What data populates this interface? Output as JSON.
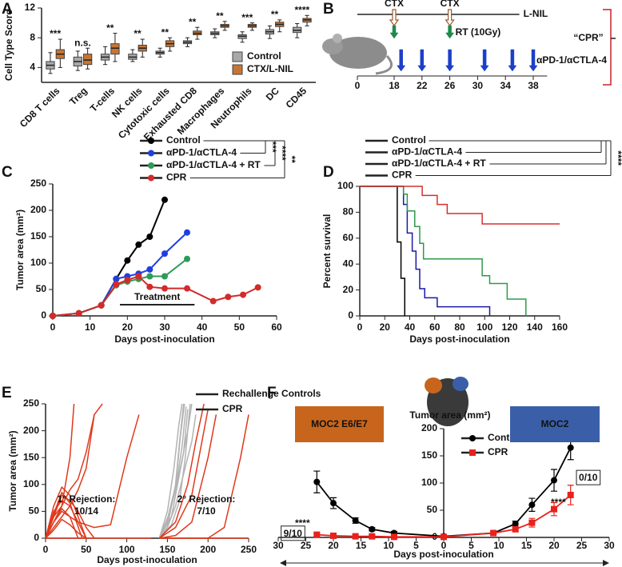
{
  "chart_data": [
    {
      "panel": "A",
      "type": "box",
      "ylabel": "Cell Type Score",
      "categories": [
        "CD8 T cells",
        "Treg",
        "T-cells",
        "NK cells",
        "Cytotoxic cells",
        "Exhausted CD8",
        "Macrophages",
        "Neutrophils",
        "DC",
        "CD45"
      ],
      "significance": [
        "***",
        "n.s.",
        "**",
        "**",
        "**",
        "**",
        "**",
        "***",
        "**",
        "****"
      ],
      "ylim": [
        2,
        12
      ],
      "yticks": [
        4,
        8,
        12
      ],
      "series": [
        {
          "name": "Control",
          "color": "#a9a9a9",
          "median": [
            4.3,
            4.8,
            5.4,
            5.4,
            6.0,
            7.4,
            8.6,
            8.2,
            8.8,
            9.0
          ],
          "q1": [
            3.8,
            4.2,
            5.0,
            5.1,
            5.8,
            7.2,
            8.4,
            7.9,
            8.5,
            8.7
          ],
          "q3": [
            4.8,
            5.4,
            5.8,
            5.8,
            6.2,
            7.6,
            8.8,
            8.4,
            9.1,
            9.4
          ],
          "min": [
            3.2,
            3.6,
            4.4,
            4.8,
            5.4,
            6.8,
            8.0,
            7.4,
            7.9,
            8.0
          ],
          "max": [
            6.0,
            6.2,
            6.8,
            6.4,
            6.6,
            8.0,
            9.2,
            8.8,
            9.6,
            9.9
          ]
        },
        {
          "name": "CTX/L-NIL",
          "color": "#c87533",
          "median": [
            5.8,
            5.0,
            6.6,
            6.6,
            7.2,
            8.6,
            9.6,
            9.6,
            9.8,
            10.4
          ],
          "q1": [
            5.2,
            4.4,
            5.8,
            6.2,
            6.8,
            8.4,
            9.4,
            9.4,
            9.5,
            10.1
          ],
          "q3": [
            6.4,
            5.8,
            7.2,
            7.0,
            7.6,
            8.9,
            9.8,
            9.8,
            10.1,
            10.6
          ],
          "min": [
            4.0,
            3.8,
            4.8,
            5.4,
            6.2,
            7.8,
            9.0,
            9.0,
            8.8,
            9.6
          ],
          "max": [
            7.8,
            6.6,
            8.6,
            7.8,
            8.0,
            9.4,
            10.2,
            10.0,
            10.4,
            11.0
          ]
        }
      ]
    },
    {
      "panel": "B",
      "type": "timeline",
      "xlim": [
        0,
        40
      ],
      "xticks": [
        0,
        18,
        22,
        26,
        30,
        34,
        38
      ],
      "lnil": {
        "label": "L-NIL",
        "days": [
          0,
          36
        ]
      },
      "ctx": {
        "label": "CTX",
        "days": [
          18,
          26
        ]
      },
      "rt": {
        "label": "RT (10Gy)",
        "days": [
          18,
          26
        ]
      },
      "antibody": {
        "label": "αPD-1/αCTLA-4",
        "days": [
          19,
          22,
          26,
          31,
          35,
          38
        ]
      },
      "bracket_label": "“CPR”"
    },
    {
      "panel": "C",
      "type": "line",
      "xlabel": "Days post-inoculation",
      "ylabel": "Tumor area (mm²)",
      "xlim": [
        0,
        60
      ],
      "xticks": [
        0,
        10,
        20,
        30,
        40,
        50,
        60
      ],
      "ylim": [
        0,
        250
      ],
      "yticks": [
        0,
        50,
        100,
        150,
        200,
        250
      ],
      "treatment": {
        "label": "Treatment",
        "start": 18,
        "end": 38
      },
      "significance": [
        "***",
        "****",
        "**"
      ],
      "series": [
        {
          "name": "Control",
          "color": "#000000",
          "x": [
            0,
            7,
            13,
            17,
            20,
            23,
            26,
            30
          ],
          "values": [
            0,
            5,
            20,
            70,
            105,
            135,
            150,
            220
          ]
        },
        {
          "name": "αPD-1/αCTLA-4",
          "color": "#1f3fe0",
          "x": [
            0,
            7,
            13,
            17,
            20,
            23,
            26,
            30,
            36
          ],
          "values": [
            0,
            5,
            20,
            70,
            75,
            80,
            88,
            118,
            158
          ]
        },
        {
          "name": "αPD-1/αCTLA-4 + RT",
          "color": "#2e9a5a",
          "x": [
            0,
            7,
            13,
            17,
            20,
            23,
            26,
            30,
            36
          ],
          "values": [
            0,
            5,
            20,
            58,
            65,
            70,
            75,
            75,
            108
          ]
        },
        {
          "name": "CPR",
          "color": "#d42a2a",
          "x": [
            0,
            7,
            13,
            17,
            20,
            23,
            26,
            30,
            36,
            43,
            47,
            51,
            55
          ],
          "values": [
            0,
            5,
            20,
            60,
            68,
            75,
            55,
            52,
            52,
            28,
            36,
            40,
            54
          ]
        }
      ]
    },
    {
      "panel": "D",
      "type": "step",
      "xlabel": "Days post-inoculation",
      "ylabel": "Percent survival",
      "xlim": [
        0,
        160
      ],
      "xticks": [
        0,
        20,
        40,
        60,
        80,
        100,
        120,
        140,
        160
      ],
      "ylim": [
        0,
        100
      ],
      "yticks": [
        0,
        20,
        40,
        60,
        80,
        100
      ],
      "significance": [
        "****"
      ],
      "series": [
        {
          "name": "Control",
          "color": "#000000",
          "x": [
            0,
            30,
            33,
            36
          ],
          "values": [
            100,
            57,
            29,
            0
          ]
        },
        {
          "name": "αPD-1/αCTLA-4",
          "color": "#1a1aa8",
          "x": [
            0,
            35,
            38,
            42,
            45,
            48,
            52,
            62,
            104
          ],
          "values": [
            100,
            86,
            64,
            50,
            36,
            21,
            14,
            7,
            0
          ]
        },
        {
          "name": "αPD-1/αCTLA-4 + RT",
          "color": "#2e9a4a",
          "x": [
            0,
            35,
            38,
            44,
            48,
            51,
            62,
            98,
            104,
            118,
            133
          ],
          "values": [
            100,
            94,
            81,
            69,
            56,
            44,
            44,
            31,
            25,
            13,
            0
          ]
        },
        {
          "name": "CPR",
          "color": "#d43030",
          "x": [
            0,
            50,
            62,
            70,
            98,
            160
          ],
          "values": [
            100,
            93,
            86,
            79,
            71,
            71
          ]
        }
      ]
    },
    {
      "panel": "E",
      "type": "spaghetti",
      "xlabel": "Days post-inoculation",
      "ylabel": "Tumor area (mm²)",
      "xlim": [
        0,
        250
      ],
      "xticks": [
        0,
        50,
        100,
        150,
        200,
        250
      ],
      "ylim": [
        0,
        250
      ],
      "yticks": [
        0,
        50,
        100,
        150,
        200,
        250
      ],
      "annotations": [
        "1° Rejection:",
        "10/14",
        "2° Rejection:",
        "7/10"
      ],
      "series": [
        {
          "name": "Rechallenge Controls",
          "color": "#b3b3b3",
          "lines": [
            {
              "x": [
                140,
                150,
                160,
                165,
                170
              ],
              "values": [
                0,
                20,
                100,
                180,
                250
              ]
            },
            {
              "x": [
                140,
                150,
                160,
                170,
                175
              ],
              "values": [
                0,
                30,
                90,
                160,
                240
              ]
            },
            {
              "x": [
                140,
                155,
                165,
                175,
                180
              ],
              "values": [
                0,
                40,
                120,
                200,
                250
              ]
            },
            {
              "x": [
                140,
                150,
                158,
                164,
                168
              ],
              "values": [
                0,
                50,
                130,
                210,
                250
              ]
            },
            {
              "x": [
                140,
                150,
                160,
                170,
                180,
                185
              ],
              "values": [
                0,
                20,
                60,
                120,
                180,
                230
              ]
            },
            {
              "x": [
                140,
                155,
                165,
                172,
                178
              ],
              "values": [
                0,
                25,
                70,
                150,
                250
              ]
            },
            {
              "x": [
                140,
                150,
                162,
                168,
                173
              ],
              "values": [
                0,
                35,
                110,
                170,
                245
              ]
            },
            {
              "x": [
                140,
                152,
                160,
                166,
                171
              ],
              "values": [
                0,
                45,
                95,
                190,
                250
              ]
            }
          ]
        },
        {
          "name": "CPR",
          "color": "#e0391c",
          "lines": [
            {
              "x": [
                0,
                130
              ],
              "values": [
                0,
                0
              ]
            },
            {
              "x": [
                0,
                10,
                20,
                30,
                40,
                50,
                60
              ],
              "values": [
                0,
                40,
                80,
                70,
                50,
                20,
                0
              ]
            },
            {
              "x": [
                0,
                10,
                20,
                30,
                40,
                50
              ],
              "values": [
                0,
                60,
                95,
                80,
                40,
                0
              ]
            },
            {
              "x": [
                0,
                10,
                20,
                30,
                40
              ],
              "values": [
                0,
                30,
                55,
                40,
                0
              ]
            },
            {
              "x": [
                0,
                10,
                20,
                30,
                40,
                50
              ],
              "values": [
                0,
                50,
                70,
                60,
                30,
                0
              ]
            },
            {
              "x": [
                0,
                10,
                20,
                30,
                35
              ],
              "values": [
                0,
                30,
                60,
                150,
                250
              ]
            },
            {
              "x": [
                0,
                10,
                20,
                30,
                40,
                50,
                60,
                70
              ],
              "values": [
                0,
                40,
                60,
                90,
                110,
                160,
                230,
                250
              ]
            },
            {
              "x": [
                0,
                10,
                20,
                30,
                40,
                50,
                55,
                60
              ],
              "values": [
                0,
                20,
                40,
                60,
                90,
                130,
                180,
                230
              ]
            },
            {
              "x": [
                0,
                10,
                20,
                30,
                40,
                60,
                80,
                100,
                115
              ],
              "values": [
                0,
                30,
                50,
                40,
                30,
                20,
                25,
                150,
                230
              ]
            },
            {
              "x": [
                0,
                10,
                20,
                30,
                40,
                50
              ],
              "values": [
                0,
                15,
                35,
                25,
                10,
                0
              ]
            },
            {
              "x": [
                0,
                10,
                20,
                30,
                45
              ],
              "values": [
                0,
                45,
                85,
                65,
                0
              ]
            },
            {
              "x": [
                140,
                250
              ],
              "values": [
                0,
                0
              ]
            },
            {
              "x": [
                140,
                160,
                180,
                200,
                210
              ],
              "values": [
                0,
                5,
                30,
                150,
                230
              ]
            },
            {
              "x": [
                140,
                160,
                180,
                190,
                200
              ],
              "values": [
                0,
                20,
                80,
                160,
                240
              ]
            },
            {
              "x": [
                140,
                160,
                175,
                185,
                195
              ],
              "values": [
                0,
                30,
                100,
                180,
                250
              ]
            },
            {
              "x": [
                140,
                200,
                220,
                240,
                250
              ],
              "values": [
                0,
                0,
                20,
                150,
                230
              ]
            }
          ]
        }
      ]
    },
    {
      "panel": "F",
      "type": "errorline",
      "title": "Tumor area (mm²)",
      "xlabel": "Days post-inoculation",
      "left_label": "MOC2 E6/E7",
      "right_label": "MOC2",
      "xlim": [
        -30,
        30
      ],
      "xticks": [
        {
          "value": -30,
          "label": "30"
        },
        {
          "value": -25,
          "label": "25"
        },
        {
          "value": -20,
          "label": "20"
        },
        {
          "value": -15,
          "label": "15"
        },
        {
          "value": -10,
          "label": "10"
        },
        {
          "value": -5,
          "label": "5"
        },
        0,
        5,
        10,
        15,
        20,
        25,
        30
      ],
      "ylim": [
        0,
        200
      ],
      "yticks": [
        0,
        50,
        100,
        150,
        200
      ],
      "significance": [
        "****",
        "****"
      ],
      "fractions": [
        "9/10",
        "0/10"
      ],
      "x": [
        -23,
        -20,
        -16,
        -13,
        -9,
        0,
        9,
        13,
        16,
        20,
        23
      ],
      "series": [
        {
          "name": "Control",
          "color": "#000000",
          "marker": "circle",
          "values": [
            102,
            63,
            31,
            15,
            8,
            2,
            8,
            25,
            60,
            105,
            165
          ],
          "errors": [
            20,
            10,
            5,
            3,
            3,
            1,
            2,
            5,
            12,
            20,
            22
          ]
        },
        {
          "name": "CPR",
          "color": "#e8221b",
          "marker": "square",
          "values": [
            5,
            3,
            2,
            2,
            1,
            1,
            8,
            15,
            27,
            52,
            78
          ],
          "errors": [
            3,
            2,
            1,
            1,
            1,
            0,
            2,
            4,
            8,
            12,
            18
          ]
        }
      ]
    }
  ]
}
